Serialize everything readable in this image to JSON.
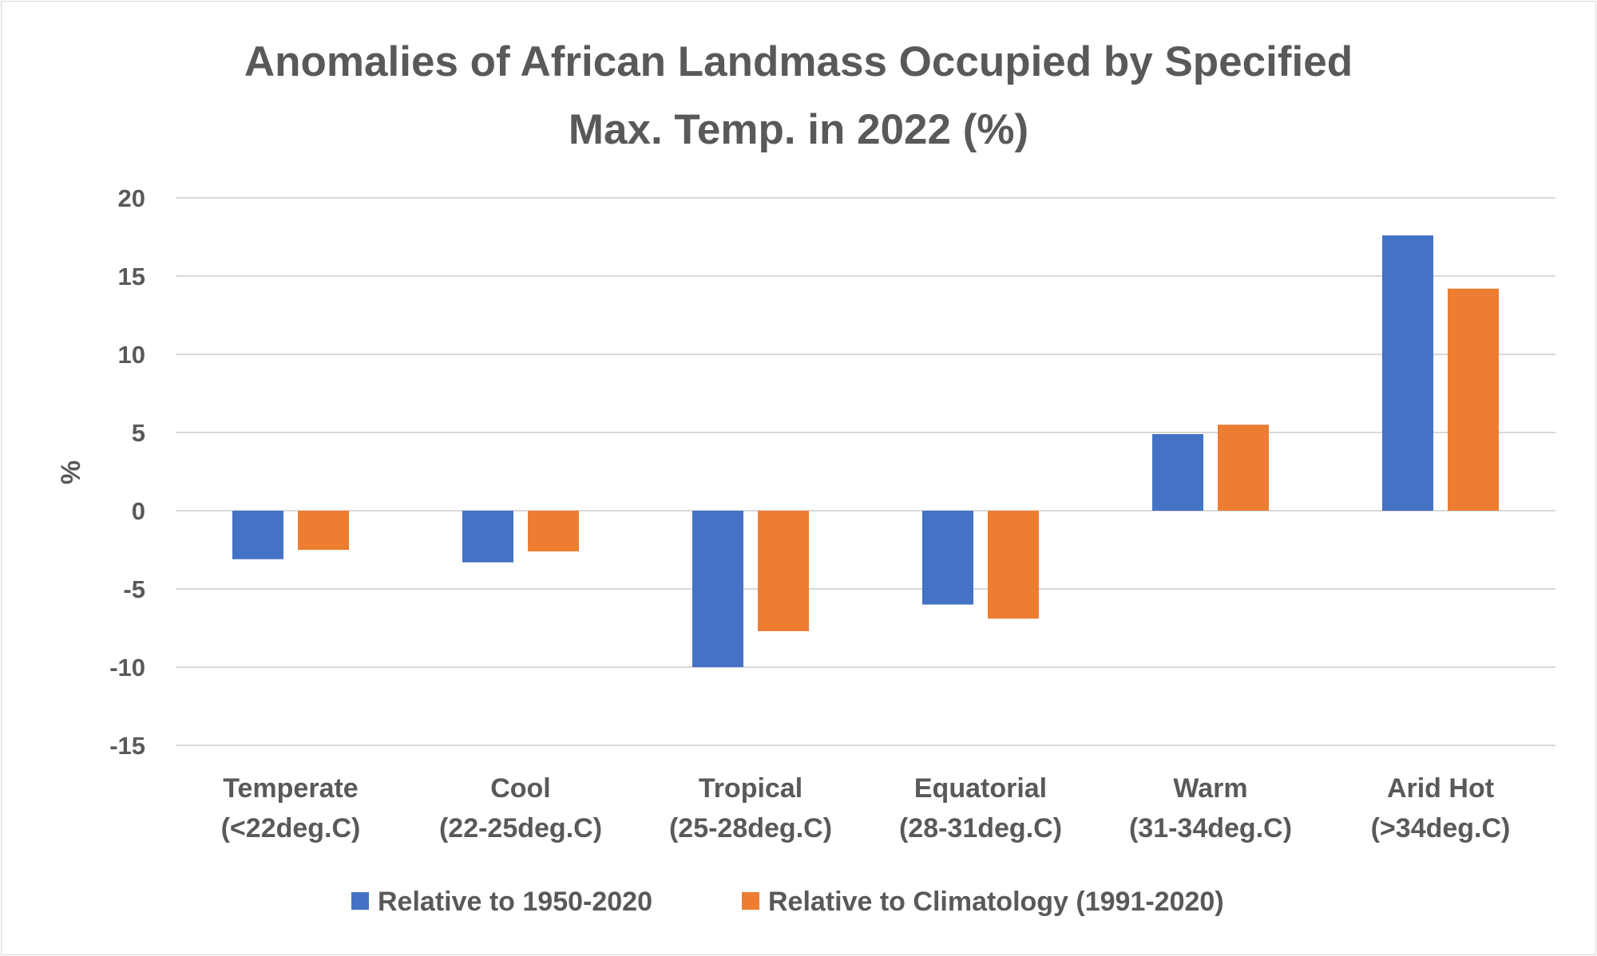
{
  "chart_data": {
    "type": "bar",
    "title_lines": [
      "Anomalies of African Landmass Occupied by Specified",
      "Max. Temp. in 2022 (%)"
    ],
    "xlabel": "",
    "ylabel": "%",
    "ylim": [
      -15,
      20
    ],
    "yticks": [
      20,
      15,
      10,
      5,
      0,
      -5,
      -10,
      -15
    ],
    "grid": true,
    "legend_position": "bottom",
    "categories": [
      [
        "Temperate",
        "(<22deg.C)"
      ],
      [
        "Cool",
        "(22-25deg.C)"
      ],
      [
        "Tropical",
        "(25-28deg.C)"
      ],
      [
        "Equatorial",
        "(28-31deg.C)"
      ],
      [
        "Warm",
        "(31-34deg.C)"
      ],
      [
        "Arid Hot",
        "(>34deg.C)"
      ]
    ],
    "series": [
      {
        "name": "Relative to 1950-2020",
        "color": "#4472c4",
        "values": [
          -3.1,
          -3.3,
          -10.0,
          -6.0,
          4.9,
          17.6
        ]
      },
      {
        "name": "Relative to Climatology (1991-2020)",
        "color": "#ed7d31",
        "values": [
          -2.5,
          -2.6,
          -7.7,
          -6.9,
          5.5,
          14.2
        ]
      }
    ]
  }
}
